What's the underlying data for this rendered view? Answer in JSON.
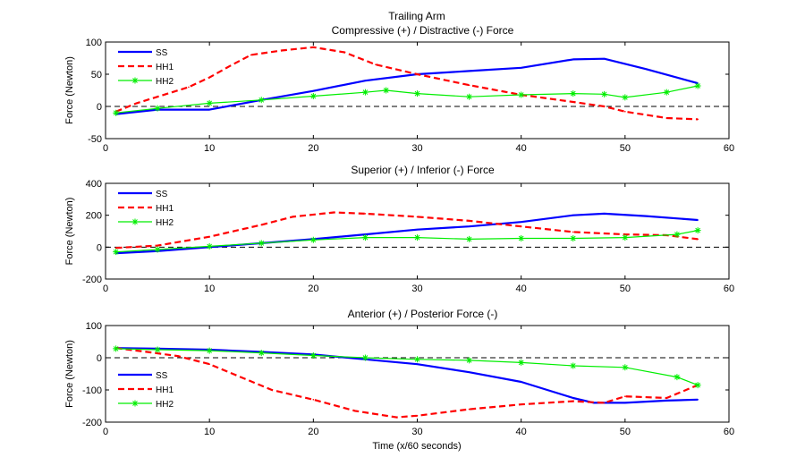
{
  "figure_title": "Trailing Arm",
  "xlabel": "Time (x/60 seconds)",
  "chart_data": [
    {
      "type": "line",
      "title": "Compressive (+) / Distractive (-) Force",
      "ylabel": "Force (Newton)",
      "xlabel": "",
      "xlim": [
        0,
        60
      ],
      "ylim": [
        -50,
        100
      ],
      "xticks": [
        0,
        10,
        20,
        30,
        40,
        50,
        60
      ],
      "yticks": [
        -50,
        0,
        50,
        100
      ],
      "zero_line": true,
      "legend_position": "top-left",
      "series": [
        {
          "name": "SS",
          "color": "#0000ff",
          "style": "solid",
          "x": [
            1,
            5,
            10,
            15,
            20,
            25,
            30,
            35,
            40,
            45,
            48,
            52,
            57
          ],
          "y": [
            -12,
            -5,
            -5,
            10,
            24,
            40,
            50,
            55,
            60,
            73,
            74,
            58,
            36
          ]
        },
        {
          "name": "HH1",
          "color": "#ff0000",
          "style": "dashed",
          "x": [
            1,
            3,
            5,
            8,
            10,
            12,
            14,
            17,
            20,
            23,
            26,
            30,
            35,
            40,
            45,
            48,
            50,
            54,
            57
          ],
          "y": [
            -8,
            5,
            15,
            30,
            45,
            63,
            80,
            87,
            92,
            84,
            65,
            50,
            33,
            18,
            7,
            0,
            -8,
            -18,
            -20
          ]
        },
        {
          "name": "HH2",
          "color": "#00ee00",
          "style": "star",
          "x": [
            1,
            5,
            10,
            15,
            20,
            25,
            27,
            30,
            35,
            40,
            45,
            48,
            50,
            54,
            57
          ],
          "y": [
            -10,
            -3,
            5,
            10,
            16,
            22,
            25,
            20,
            15,
            18,
            20,
            19,
            14,
            22,
            32
          ]
        }
      ]
    },
    {
      "type": "line",
      "title": "Superior (+) / Inferior (-) Force",
      "ylabel": "Force (Newton)",
      "xlabel": "",
      "xlim": [
        0,
        60
      ],
      "ylim": [
        -200,
        400
      ],
      "xticks": [
        0,
        10,
        20,
        30,
        40,
        50,
        60
      ],
      "yticks": [
        -200,
        0,
        200,
        400
      ],
      "zero_line": true,
      "legend_position": "top-left",
      "series": [
        {
          "name": "SS",
          "color": "#0000ff",
          "style": "solid",
          "x": [
            1,
            5,
            10,
            15,
            20,
            25,
            30,
            35,
            40,
            45,
            48,
            52,
            57
          ],
          "y": [
            -38,
            -25,
            0,
            25,
            50,
            80,
            110,
            130,
            158,
            200,
            210,
            195,
            170
          ]
        },
        {
          "name": "HH1",
          "color": "#ff0000",
          "style": "dashed",
          "x": [
            1,
            5,
            10,
            15,
            18,
            22,
            25,
            30,
            35,
            40,
            45,
            50,
            54,
            57
          ],
          "y": [
            -5,
            10,
            65,
            140,
            190,
            218,
            210,
            190,
            165,
            130,
            95,
            80,
            75,
            50
          ]
        },
        {
          "name": "HH2",
          "color": "#00ee00",
          "style": "star",
          "x": [
            1,
            5,
            10,
            15,
            20,
            25,
            30,
            35,
            40,
            45,
            50,
            55,
            57
          ],
          "y": [
            -30,
            -15,
            5,
            25,
            45,
            60,
            60,
            50,
            55,
            55,
            60,
            80,
            105
          ]
        }
      ]
    },
    {
      "type": "line",
      "title": "Anterior (+) / Posterior Force (-)",
      "ylabel": "Force (Newton)",
      "xlabel": "Time (x/60 seconds)",
      "xlim": [
        0,
        60
      ],
      "ylim": [
        -200,
        100
      ],
      "xticks": [
        0,
        10,
        20,
        30,
        40,
        50,
        60
      ],
      "yticks": [
        -200,
        -100,
        0,
        100
      ],
      "zero_line": true,
      "legend_position": "bottom-left",
      "series": [
        {
          "name": "SS",
          "color": "#0000ff",
          "style": "solid",
          "x": [
            1,
            5,
            10,
            15,
            20,
            25,
            30,
            35,
            40,
            45,
            47,
            50,
            54,
            57
          ],
          "y": [
            30,
            28,
            25,
            18,
            10,
            -5,
            -20,
            -45,
            -75,
            -125,
            -140,
            -140,
            -133,
            -130
          ]
        },
        {
          "name": "HH1",
          "color": "#ff0000",
          "style": "dashed",
          "x": [
            1,
            4,
            7,
            10,
            13,
            16,
            20,
            24,
            28,
            30,
            35,
            40,
            45,
            48,
            50,
            54,
            57
          ],
          "y": [
            30,
            18,
            5,
            -20,
            -60,
            -100,
            -130,
            -165,
            -185,
            -180,
            -160,
            -145,
            -135,
            -140,
            -120,
            -125,
            -85
          ]
        },
        {
          "name": "HH2",
          "color": "#00ee00",
          "style": "star",
          "x": [
            1,
            5,
            10,
            15,
            20,
            25,
            30,
            35,
            40,
            45,
            50,
            55,
            57
          ],
          "y": [
            28,
            25,
            22,
            15,
            7,
            0,
            -5,
            -8,
            -15,
            -25,
            -30,
            -60,
            -85
          ]
        }
      ]
    }
  ]
}
